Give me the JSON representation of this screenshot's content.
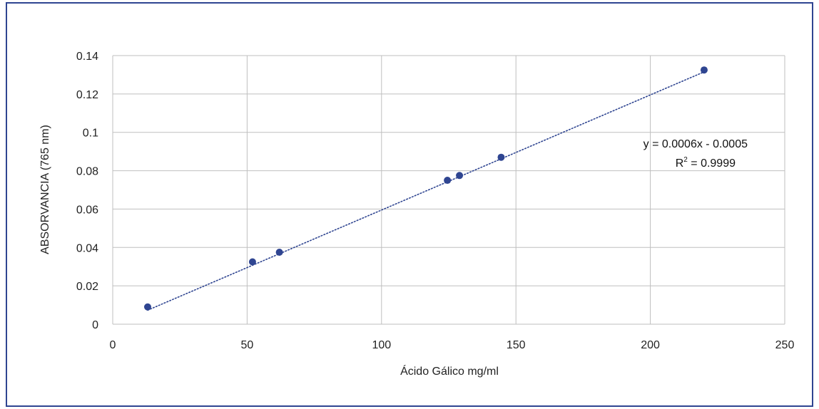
{
  "chart_data": {
    "type": "scatter",
    "title": "",
    "xlabel": "Ácido Gálico mg/ml",
    "ylabel": "ABSORVANCIA (765 nm)",
    "xlim": [
      0,
      250
    ],
    "ylim": [
      0,
      0.14
    ],
    "x_ticks": [
      "0",
      "50",
      "100",
      "150",
      "200",
      "250"
    ],
    "y_ticks": [
      "0",
      "0.02",
      "0.04",
      "0.06",
      "0.08",
      "0.1",
      "0.12",
      "0.14"
    ],
    "grid": true,
    "series": [
      {
        "points": [
          {
            "x": 13,
            "y": 0.009
          },
          {
            "x": 52,
            "y": 0.0325
          },
          {
            "x": 62,
            "y": 0.0375
          },
          {
            "x": 124.5,
            "y": 0.075
          },
          {
            "x": 129,
            "y": 0.0775
          },
          {
            "x": 144.5,
            "y": 0.087
          },
          {
            "x": 220,
            "y": 0.1325
          }
        ],
        "color": "#2f4591"
      }
    ],
    "trendline": {
      "type": "linear",
      "slope": 0.0006,
      "intercept": -0.0005,
      "x_range": [
        13,
        220
      ],
      "style": "dotted",
      "color": "#2f4591"
    },
    "equation_text": "y = 0.0006x - 0.0005",
    "r2_prefix": "R",
    "r2_superscript": "2",
    "r2_value_text": " = 0.9999"
  },
  "colors": {
    "frame_border": "#2f4591",
    "grid": "#bfbfbf",
    "marker": "#2f4591"
  }
}
